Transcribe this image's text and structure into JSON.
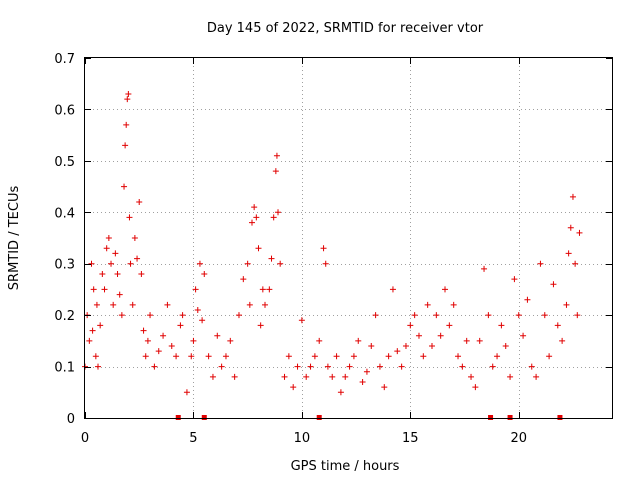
{
  "chart_data": {
    "type": "scatter",
    "title": "Day 145 of 2022, SRMTID for receiver vtor",
    "xlabel": "GPS time / hours",
    "ylabel": "SRMTID / TECUs",
    "xlim": [
      0,
      24.3
    ],
    "ylim": [
      0,
      0.7
    ],
    "xticks": [
      0,
      5,
      10,
      15,
      20
    ],
    "xtick_labels": [
      "0",
      "5",
      "10",
      "15",
      "20"
    ],
    "yticks": [
      0,
      0.1,
      0.2,
      0.3,
      0.4,
      0.5,
      0.6,
      0.7
    ],
    "ytick_labels": [
      "0",
      "0.1",
      "0.2",
      "0.3",
      "0.4",
      "0.5",
      "0.6",
      "0.7"
    ],
    "grid": true,
    "marker": "+",
    "color": "#e00000",
    "series": [
      {
        "name": "SRMTID",
        "x": [
          0.0,
          0.1,
          0.2,
          0.3,
          0.35,
          0.4,
          0.5,
          0.55,
          0.6,
          0.7,
          0.8,
          0.9,
          1.0,
          1.1,
          1.2,
          1.3,
          1.4,
          1.5,
          1.6,
          1.7,
          1.8,
          1.85,
          1.9,
          1.95,
          2.0,
          2.05,
          2.1,
          2.2,
          2.3,
          2.4,
          2.5,
          2.6,
          2.7,
          2.8,
          2.9,
          3.0,
          3.2,
          3.4,
          3.6,
          3.8,
          4.0,
          4.2,
          4.4,
          4.5,
          4.7,
          4.9,
          5.0,
          5.1,
          5.2,
          5.3,
          5.4,
          5.5,
          5.7,
          5.9,
          6.1,
          6.3,
          6.5,
          6.7,
          6.9,
          7.1,
          7.3,
          7.5,
          7.6,
          7.7,
          7.8,
          7.9,
          8.0,
          8.1,
          8.2,
          8.3,
          8.5,
          8.6,
          8.7,
          8.8,
          8.85,
          8.9,
          9.0,
          9.2,
          9.4,
          9.6,
          9.8,
          10.0,
          10.2,
          10.4,
          10.6,
          10.8,
          11.0,
          11.1,
          11.2,
          11.4,
          11.6,
          11.8,
          12.0,
          12.2,
          12.4,
          12.6,
          12.8,
          13.0,
          13.2,
          13.4,
          13.6,
          13.8,
          14.0,
          14.2,
          14.4,
          14.6,
          14.8,
          15.0,
          15.2,
          15.4,
          15.6,
          15.8,
          16.0,
          16.2,
          16.4,
          16.6,
          16.8,
          17.0,
          17.2,
          17.4,
          17.6,
          17.8,
          18.0,
          18.2,
          18.4,
          18.6,
          18.8,
          19.0,
          19.2,
          19.4,
          19.6,
          19.8,
          20.0,
          20.2,
          20.4,
          20.6,
          20.8,
          21.0,
          21.2,
          21.4,
          21.6,
          21.8,
          22.0,
          22.2,
          22.3,
          22.4,
          22.5,
          22.6,
          22.7,
          22.8
        ],
        "y": [
          0.1,
          0.2,
          0.15,
          0.3,
          0.17,
          0.25,
          0.12,
          0.22,
          0.1,
          0.18,
          0.28,
          0.25,
          0.33,
          0.35,
          0.3,
          0.22,
          0.32,
          0.28,
          0.24,
          0.2,
          0.45,
          0.53,
          0.57,
          0.62,
          0.63,
          0.39,
          0.3,
          0.22,
          0.35,
          0.31,
          0.42,
          0.28,
          0.17,
          0.12,
          0.15,
          0.2,
          0.1,
          0.13,
          0.16,
          0.22,
          0.14,
          0.12,
          0.18,
          0.2,
          0.05,
          0.12,
          0.15,
          0.25,
          0.21,
          0.3,
          0.19,
          0.28,
          0.12,
          0.08,
          0.16,
          0.1,
          0.12,
          0.15,
          0.08,
          0.2,
          0.27,
          0.3,
          0.22,
          0.38,
          0.41,
          0.39,
          0.33,
          0.18,
          0.25,
          0.22,
          0.25,
          0.31,
          0.39,
          0.48,
          0.51,
          0.4,
          0.3,
          0.08,
          0.12,
          0.06,
          0.1,
          0.19,
          0.08,
          0.1,
          0.12,
          0.15,
          0.33,
          0.3,
          0.1,
          0.08,
          0.12,
          0.05,
          0.08,
          0.1,
          0.12,
          0.15,
          0.07,
          0.09,
          0.14,
          0.2,
          0.1,
          0.06,
          0.12,
          0.25,
          0.13,
          0.1,
          0.14,
          0.18,
          0.2,
          0.16,
          0.12,
          0.22,
          0.14,
          0.2,
          0.16,
          0.25,
          0.18,
          0.22,
          0.12,
          0.1,
          0.15,
          0.08,
          0.06,
          0.15,
          0.29,
          0.2,
          0.1,
          0.12,
          0.18,
          0.14,
          0.08,
          0.27,
          0.2,
          0.16,
          0.23,
          0.1,
          0.08,
          0.3,
          0.2,
          0.12,
          0.26,
          0.18,
          0.15,
          0.22,
          0.32,
          0.37,
          0.43,
          0.3,
          0.2,
          0.36
        ]
      }
    ],
    "gap_markers_x": [
      4.3,
      5.5,
      10.8,
      18.7,
      19.6,
      21.9
    ]
  }
}
